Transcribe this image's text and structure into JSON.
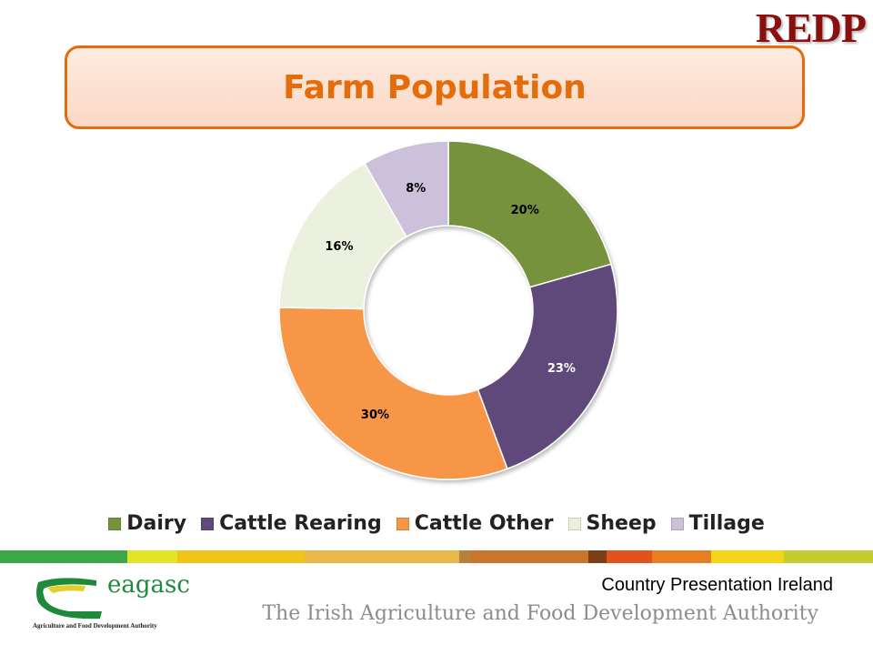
{
  "header": {
    "logo_text": "REDP"
  },
  "chart_data": {
    "type": "pie",
    "title": "Farm Population",
    "donut": true,
    "categories": [
      "Dairy",
      "Cattle Rearing",
      "Cattle Other",
      "Sheep",
      "Tillage"
    ],
    "values": [
      20,
      23,
      30,
      16,
      8
    ],
    "labels": [
      "20%",
      "23%",
      "30%",
      "16%",
      "8%"
    ],
    "colors": [
      "#76923c",
      "#5f497a",
      "#f79646",
      "#ebf1de",
      "#ccc1da"
    ],
    "label_colors": [
      "#000000",
      "#ffffff",
      "#000000",
      "#000000",
      "#000000"
    ],
    "legend_position": "bottom"
  },
  "footer": {
    "band_colors": [
      "#3aa845",
      "#e3e428",
      "#f0c419",
      "#e8b84a",
      "#b5813f",
      "#c9762c",
      "#7a3f14",
      "#e0531d",
      "#e87e22",
      "#f3d51a",
      "#c3cd2e"
    ],
    "logo_text": "eagasc",
    "logo_sub": "Agriculture and Food Development Authority",
    "country": "Country Presentation Ireland",
    "authority": "The Irish Agriculture and Food Development Authority"
  }
}
